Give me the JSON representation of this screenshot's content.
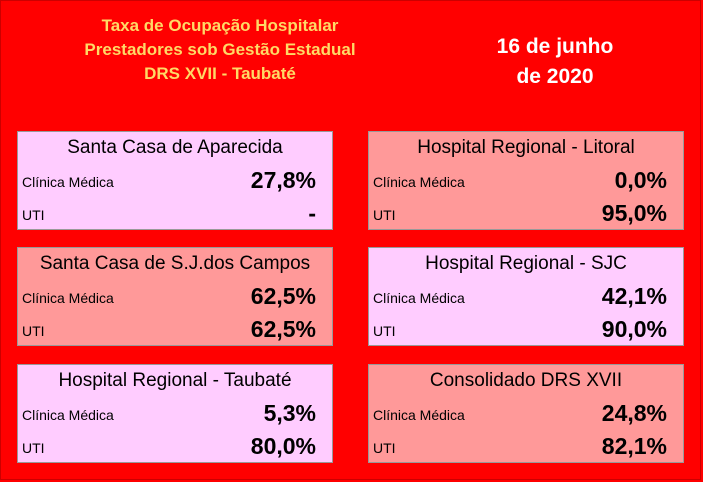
{
  "header": {
    "title_lines": [
      "Taxa de Ocupação Hospitalar",
      "Prestadores sob Gestão Estadual",
      "DRS XVII - Taubaté"
    ],
    "date_lines": [
      "16 de junho",
      "de 2020"
    ]
  },
  "colors": {
    "background": "#ff0000",
    "title_text": "#ffd966",
    "date_text": "#ffffff",
    "card_pink": "#ffccff",
    "card_salmon": "#ff9999"
  },
  "cards": [
    {
      "name": "Santa Casa de Aparecida",
      "rows": [
        {
          "label": "Clínica Médica",
          "value": "27,8%"
        },
        {
          "label": "UTI",
          "value": "-"
        }
      ]
    },
    {
      "name": "Hospital Regional - Litoral",
      "rows": [
        {
          "label": "Clínica Médica",
          "value": "0,0%"
        },
        {
          "label": "UTI",
          "value": "95,0%"
        }
      ]
    },
    {
      "name": "Santa Casa de S.J.dos Campos",
      "rows": [
        {
          "label": "Clínica Médica",
          "value": "62,5%"
        },
        {
          "label": "UTI",
          "value": "62,5%"
        }
      ]
    },
    {
      "name": "Hospital Regional - SJC",
      "rows": [
        {
          "label": "Clínica Médica",
          "value": "42,1%"
        },
        {
          "label": "UTI",
          "value": "90,0%"
        }
      ]
    },
    {
      "name": "Hospital Regional - Taubaté",
      "rows": [
        {
          "label": "Clínica Médica",
          "value": "5,3%"
        },
        {
          "label": "UTI",
          "value": "80,0%"
        }
      ]
    },
    {
      "name": "Consolidado DRS XVII",
      "rows": [
        {
          "label": "Clínica Médica",
          "value": "24,8%"
        },
        {
          "label": "UTI",
          "value": "82,1%"
        }
      ]
    }
  ]
}
